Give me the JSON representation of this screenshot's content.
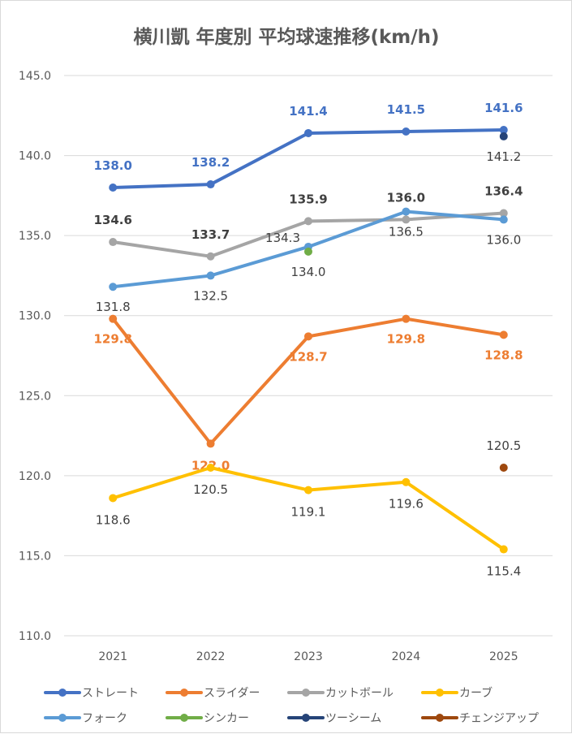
{
  "chart_data": {
    "type": "line",
    "title": "横川凱 年度別 平均球速推移(km/h)",
    "xlabel": "",
    "ylabel": "",
    "categories": [
      "2021",
      "2022",
      "2023",
      "2024",
      "2025"
    ],
    "ylim": [
      110,
      145
    ],
    "yticks": [
      "110.0",
      "115.0",
      "120.0",
      "125.0",
      "130.0",
      "135.0",
      "140.0",
      "145.0"
    ],
    "grid": true,
    "legend_position": "bottom",
    "series": [
      {
        "name": "ストレート",
        "color": "#4472C4",
        "label_color": "#4472C4",
        "values": [
          138.0,
          138.2,
          141.4,
          141.5,
          141.6
        ],
        "labels": [
          "138.0",
          "138.2",
          "141.4",
          "141.5",
          "141.6"
        ]
      },
      {
        "name": "スライダー",
        "color": "#ED7D31",
        "label_color": "#ED7D31",
        "values": [
          129.8,
          122.0,
          128.7,
          129.8,
          128.8
        ],
        "labels": [
          "129.8",
          "122.0",
          "128.7",
          "129.8",
          "128.8"
        ]
      },
      {
        "name": "カットボール",
        "color": "#A5A5A5",
        "label_color": "#404040",
        "values": [
          134.6,
          133.7,
          135.9,
          136.0,
          136.4
        ],
        "labels": [
          "134.6",
          "133.7",
          "135.9",
          "136.0",
          "136.4"
        ]
      },
      {
        "name": "カーブ",
        "color": "#FFC000",
        "label_color": "#404040",
        "values": [
          118.6,
          120.5,
          119.1,
          119.6,
          115.4
        ],
        "labels": [
          "118.6",
          "120.5",
          "119.1",
          "119.6",
          "115.4"
        ]
      },
      {
        "name": "フォーク",
        "color": "#5B9BD5",
        "label_color": "#404040",
        "values": [
          131.8,
          132.5,
          134.3,
          136.5,
          136.0
        ],
        "labels": [
          "131.8",
          "132.5",
          "134.3",
          "136.5",
          "136.0"
        ]
      },
      {
        "name": "シンカー",
        "color": "#70AD47",
        "label_color": "#404040",
        "values": [
          null,
          null,
          134.0,
          null,
          null
        ],
        "labels": [
          null,
          null,
          "134.0",
          null,
          null
        ]
      },
      {
        "name": "ツーシーム",
        "color": "#264478",
        "label_color": "#404040",
        "values": [
          null,
          null,
          null,
          null,
          141.2
        ],
        "labels": [
          null,
          null,
          null,
          null,
          "141.2"
        ]
      },
      {
        "name": "チェンジアップ",
        "color": "#9E480E",
        "label_color": "#404040",
        "values": [
          null,
          null,
          null,
          null,
          120.5
        ],
        "labels": [
          null,
          null,
          null,
          null,
          "120.5"
        ]
      }
    ]
  }
}
